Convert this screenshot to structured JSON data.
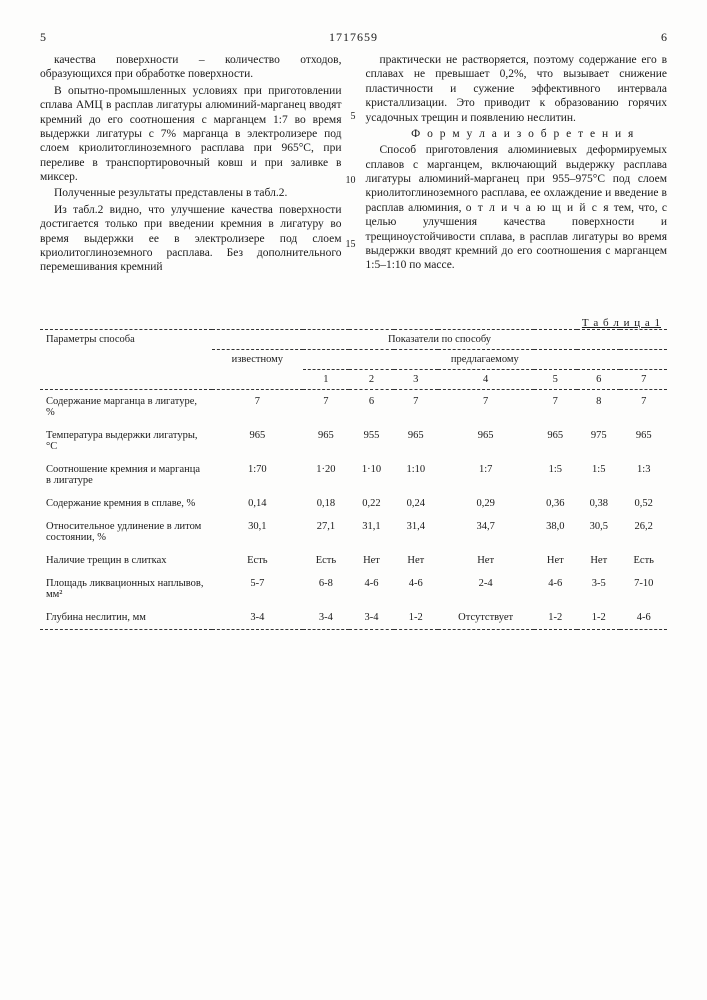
{
  "header": {
    "left_page": "5",
    "doc_number": "1717659",
    "right_page": "6"
  },
  "left_column": {
    "p1": "качества поверхности – количество отходов, образующихся при обработке поверхности.",
    "p2": "В опытно-промышленных условиях при приготовлении сплава АМЦ в расплав лигатуры алюминий-марганец вводят кремний до его соотношения с марганцем 1:7 во время выдержки лигатуры с 7% марганца в электролизере под слоем криолитоглиноземного расплава при 965°С, при переливе в транспортировочный ковш и при заливке в миксер.",
    "p3": "Полученные результаты представлены в табл.2.",
    "p4": "Из табл.2 видно, что улучшение качества поверхности достигается только при введении кремния в лигатуру во время выдержки ее в электролизере под слоем криолитоглиноземного расплава. Без дополнительного перемешивания кремний",
    "m5": "5",
    "m10": "10",
    "m15": "15"
  },
  "right_column": {
    "p1": "практически не растворяется, поэтому содержание его в сплавах не превышает 0,2%, что вызывает снижение пластичности и сужение эффективного интервала кристаллизации. Это приводит к образованию горячих усадочных трещин и появлению неслитин.",
    "formula_title": "Ф о р м у л а  и з о б р е т е н и я",
    "p2a": "Способ приготовления алюминиевых деформируемых сплавов с марганцем, включающий выдержку расплава лигатуры алюминий-марганец при 955–975°С под слоем криолитоглиноземного расплава, ее охлаждение и введение в расплав алюминия, ",
    "p2b": "о т л и ч а ю щ и й с я",
    "p2c": " тем, что, с целью улучшения качества поверхности и трещиноустойчивости сплава, в расплав лигатуры во время выдержки вводят кремний до его соотношения с марганцем 1:5–1:10 по массе."
  },
  "table": {
    "caption": "Т а б л и ц а  1",
    "param_header": "Параметры способа",
    "indicator_header": "Показатели по способу",
    "known": "известному",
    "proposed": "предлагаемому",
    "cols": [
      "1",
      "2",
      "3",
      "4",
      "5",
      "6",
      "7"
    ],
    "rows": [
      {
        "label": "Содержание марганца в лигатуре, %",
        "k": "7",
        "v": [
          "7",
          "6",
          "7",
          "7",
          "7",
          "8",
          "7"
        ]
      },
      {
        "label": "Температура выдержки лигатуры, °С",
        "k": "965",
        "v": [
          "965",
          "955",
          "965",
          "965",
          "965",
          "975",
          "965"
        ]
      },
      {
        "label": "Соотношение кремния и марганца в лигатуре",
        "k": "1:70",
        "v": [
          "1·20",
          "1·10",
          "1:10",
          "1:7",
          "1:5",
          "1:5",
          "1:3"
        ]
      },
      {
        "label": "Содержание кремния в сплаве, %",
        "k": "0,14",
        "v": [
          "0,18",
          "0,22",
          "0,24",
          "0,29",
          "0,36",
          "0,38",
          "0,52"
        ]
      },
      {
        "label": "Относительное удлинение в литом состоянии, %",
        "k": "30,1",
        "v": [
          "27,1",
          "31,1",
          "31,4",
          "34,7",
          "38,0",
          "30,5",
          "26,2"
        ]
      },
      {
        "label": "Наличие трещин в слитках",
        "k": "Есть",
        "v": [
          "Есть",
          "Нет",
          "Нет",
          "Нет",
          "Нет",
          "Нет",
          "Есть"
        ]
      },
      {
        "label": "Площадь ликвационных наплывов, мм²",
        "k": "5-7",
        "v": [
          "6-8",
          "4-6",
          "4-6",
          "2-4",
          "4-6",
          "3-5",
          "7-10"
        ]
      },
      {
        "label": "Глубина неслитин, мм",
        "k": "3-4",
        "v": [
          "3-4",
          "3-4",
          "1-2",
          "Отсут­ствует",
          "1-2",
          "1-2",
          "4-6"
        ]
      }
    ]
  }
}
